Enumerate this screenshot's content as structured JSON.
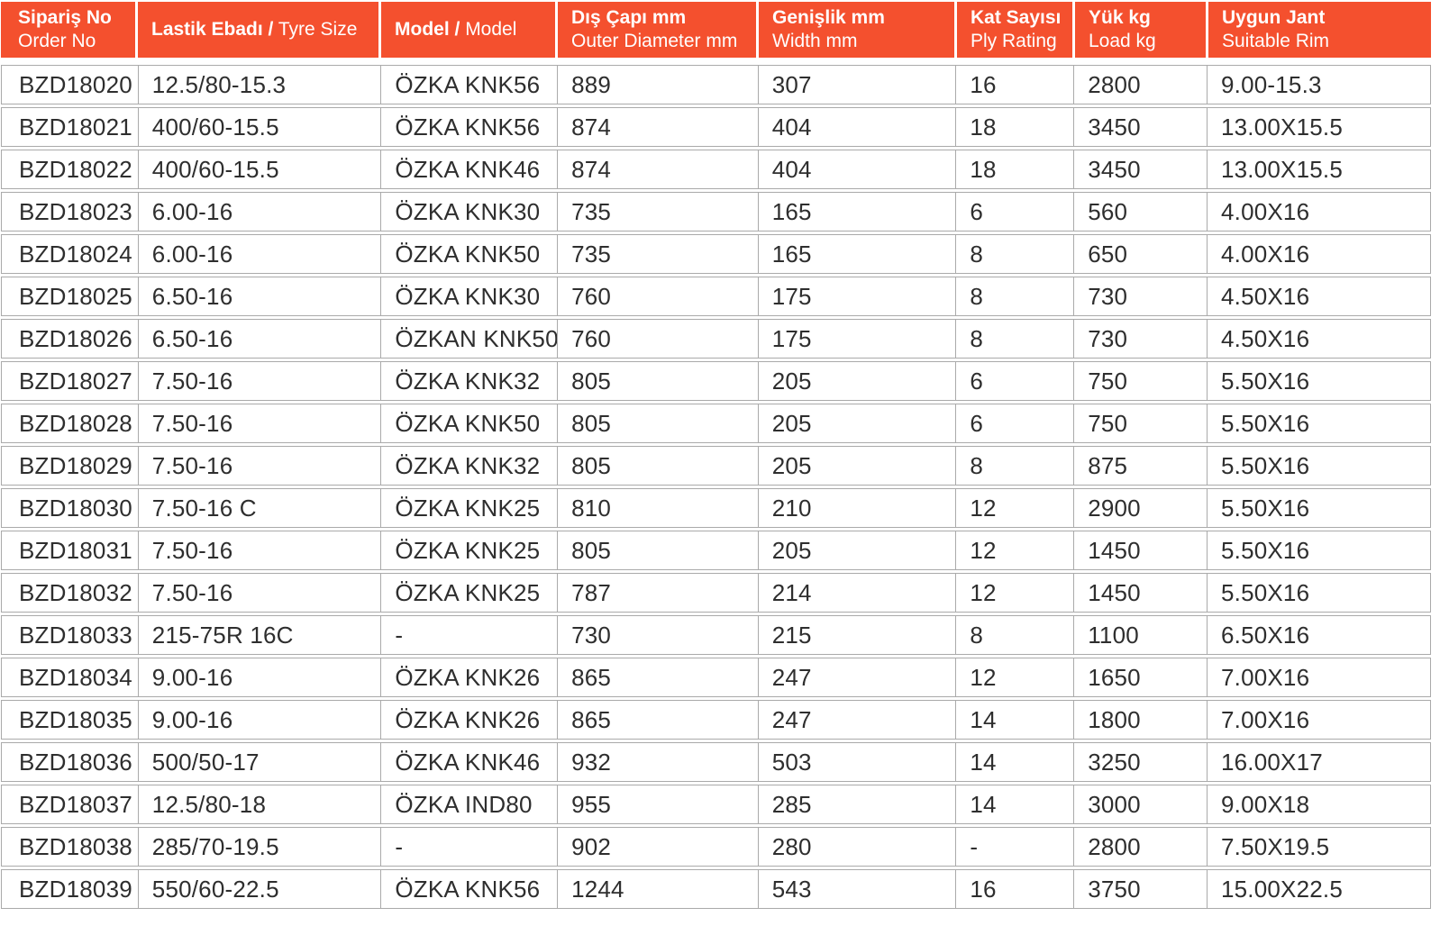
{
  "colors": {
    "header_bg": "#f4502e",
    "header_text": "#ffffff",
    "border": "#aaaaaa",
    "body_text": "#2e2e2e"
  },
  "table": {
    "columns": [
      {
        "tr": "Sipariş No",
        "en": "Order No",
        "layout": "stack"
      },
      {
        "tr": "Lastik Ebadı /",
        "en": "Tyre Size",
        "layout": "inline"
      },
      {
        "tr": "Model /",
        "en": "Model",
        "layout": "inline"
      },
      {
        "tr": "Dış Çapı mm",
        "en": "Outer Diameter mm",
        "layout": "stack"
      },
      {
        "tr": "Genişlik mm",
        "en": "Width mm",
        "layout": "stack"
      },
      {
        "tr": "Kat Sayısı",
        "en": "Ply Rating",
        "layout": "stack"
      },
      {
        "tr": "Yük kg",
        "en": "Load kg",
        "layout": "stack"
      },
      {
        "tr": "Uygun Jant",
        "en": "Suitable Rim",
        "layout": "stack"
      }
    ],
    "rows": [
      [
        "BZD18020",
        "12.5/80-15.3",
        "ÖZKA KNK56",
        "889",
        "307",
        "16",
        "2800",
        "9.00-15.3"
      ],
      [
        "BZD18021",
        "400/60-15.5",
        "ÖZKA KNK56",
        "874",
        "404",
        "18",
        "3450",
        "13.00X15.5"
      ],
      [
        "BZD18022",
        "400/60-15.5",
        "ÖZKA KNK46",
        "874",
        "404",
        "18",
        "3450",
        "13.00X15.5"
      ],
      [
        "BZD18023",
        "6.00-16",
        "ÖZKA KNK30",
        "735",
        "165",
        "6",
        "560",
        "4.00X16"
      ],
      [
        "BZD18024",
        "6.00-16",
        "ÖZKA KNK50",
        "735",
        "165",
        "8",
        "650",
        "4.00X16"
      ],
      [
        "BZD18025",
        "6.50-16",
        "ÖZKA KNK30",
        "760",
        "175",
        "8",
        "730",
        "4.50X16"
      ],
      [
        "BZD18026",
        "6.50-16",
        "ÖZKAN KNK50",
        "760",
        "175",
        "8",
        "730",
        "4.50X16"
      ],
      [
        "BZD18027",
        "7.50-16",
        "ÖZKA KNK32",
        "805",
        "205",
        "6",
        "750",
        "5.50X16"
      ],
      [
        "BZD18028",
        "7.50-16",
        "ÖZKA KNK50",
        "805",
        "205",
        "6",
        "750",
        "5.50X16"
      ],
      [
        "BZD18029",
        "7.50-16",
        "ÖZKA KNK32",
        "805",
        "205",
        "8",
        "875",
        "5.50X16"
      ],
      [
        "BZD18030",
        "7.50-16 C",
        "ÖZKA KNK25",
        "810",
        "210",
        "12",
        "2900",
        "5.50X16"
      ],
      [
        "BZD18031",
        "7.50-16",
        "ÖZKA KNK25",
        "805",
        "205",
        "12",
        "1450",
        "5.50X16"
      ],
      [
        "BZD18032",
        "7.50-16",
        "ÖZKA KNK25",
        "787",
        "214",
        "12",
        "1450",
        "5.50X16"
      ],
      [
        "BZD18033",
        "215-75R 16C",
        "-",
        "730",
        "215",
        "8",
        "1100",
        "6.50X16"
      ],
      [
        "BZD18034",
        "9.00-16",
        "ÖZKA KNK26",
        "865",
        "247",
        "12",
        "1650",
        "7.00X16"
      ],
      [
        "BZD18035",
        "9.00-16",
        "ÖZKA KNK26",
        "865",
        "247",
        "14",
        "1800",
        "7.00X16"
      ],
      [
        "BZD18036",
        "500/50-17",
        "ÖZKA KNK46",
        "932",
        "503",
        "14",
        "3250",
        "16.00X17"
      ],
      [
        "BZD18037",
        "12.5/80-18",
        "ÖZKA IND80",
        "955",
        "285",
        "14",
        "3000",
        "9.00X18"
      ],
      [
        "BZD18038",
        "285/70-19.5",
        "-",
        "902",
        "280",
        "-",
        "2800",
        "7.50X19.5"
      ],
      [
        "BZD18039",
        "550/60-22.5",
        "ÖZKA KNK56",
        "1244",
        "543",
        "16",
        "3750",
        "15.00X22.5"
      ]
    ],
    "cell_names": [
      "order-no",
      "tyre-size",
      "model",
      "outer-diameter",
      "width",
      "ply-rating",
      "load",
      "suitable-rim"
    ]
  }
}
